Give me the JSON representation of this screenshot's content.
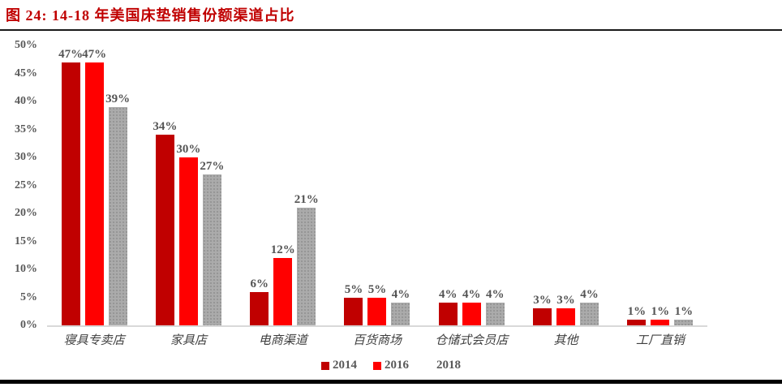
{
  "header": {
    "title": "图 24: 14-18 年美国床垫销售份额渠道占比"
  },
  "colors": {
    "title_red": "#c00000",
    "series_2014": "#c00000",
    "series_2016": "#ff0000",
    "series_2018": "#ababab",
    "axis_text": "#595959",
    "baseline": "#d9d9d9",
    "rule": "#000000"
  },
  "chart_data": {
    "type": "bar",
    "title": "图 24: 14-18 年美国床垫销售份额渠道占比",
    "categories": [
      "寝具专卖店",
      "家具店",
      "电商渠道",
      "百货商场",
      "仓储式会员店",
      "其他",
      "工厂直销"
    ],
    "series": [
      {
        "name": "2014",
        "color": "#c00000",
        "texture": "solid",
        "values": [
          47,
          34,
          6,
          5,
          4,
          3,
          1
        ]
      },
      {
        "name": "2016",
        "color": "#ff0000",
        "texture": "solid",
        "values": [
          47,
          30,
          12,
          5,
          4,
          3,
          1
        ]
      },
      {
        "name": "2018",
        "color": "#ababab",
        "texture": "dots",
        "values": [
          39,
          27,
          21,
          4,
          4,
          4,
          1
        ]
      }
    ],
    "data_label_suffix": "%",
    "xlabel": "",
    "ylabel": "",
    "ylim": [
      0,
      50
    ],
    "yticks": [
      "0%",
      "5%",
      "10%",
      "15%",
      "20%",
      "25%",
      "30%",
      "35%",
      "40%",
      "45%",
      "50%"
    ],
    "grid": false,
    "legend_position": "bottom"
  }
}
